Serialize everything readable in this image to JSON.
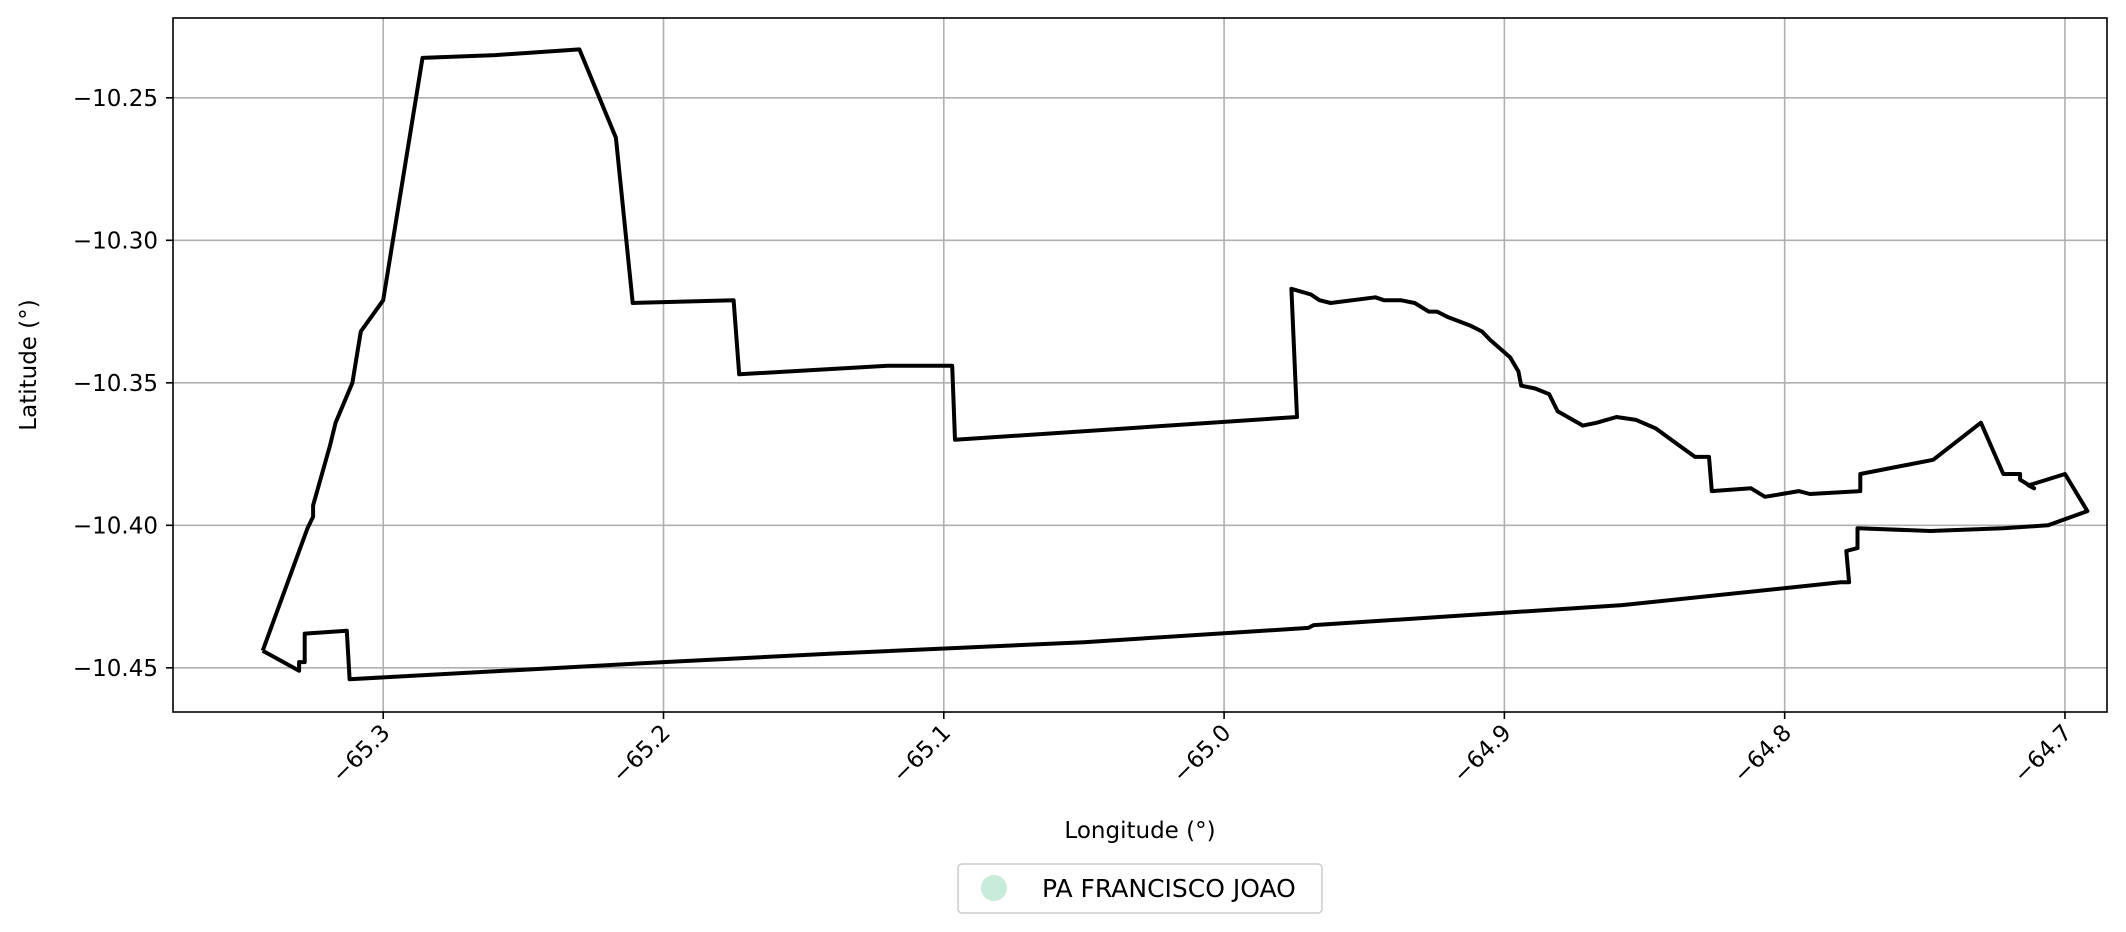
{
  "chart_data": {
    "type": "line",
    "title": "",
    "xlabel": "Longitude (°)",
    "ylabel": "Latitude (°)",
    "xlim": [
      -65.375,
      -64.685
    ],
    "ylim": [
      -10.4655,
      -10.222
    ],
    "grid": true,
    "legend_placement": "bottom-center",
    "xticks": [
      -65.3,
      -65.2,
      -65.1,
      -65.0,
      -64.9,
      -64.8,
      -64.7
    ],
    "xtick_labels": [
      "−65.3",
      "−65.2",
      "−65.1",
      "−65.0",
      "−64.9",
      "−64.8",
      "−64.7"
    ],
    "yticks": [
      -10.25,
      -10.3,
      -10.35,
      -10.4,
      -10.45
    ],
    "ytick_labels": [
      "−10.25",
      "−10.30",
      "−10.35",
      "−10.40",
      "−10.45"
    ],
    "legend": [
      {
        "name": "PA FRANCISCO JOAO",
        "color": "#c8ebdc"
      }
    ],
    "series": [
      {
        "name": "PA FRANCISCO JOAO",
        "color": "#000000",
        "points": [
          [
            -65.343,
            -10.444
          ],
          [
            -65.327,
            -10.401
          ],
          [
            -65.325,
            -10.397
          ],
          [
            -65.325,
            -10.393
          ],
          [
            -65.319,
            -10.372
          ],
          [
            -65.317,
            -10.364
          ],
          [
            -65.311,
            -10.35
          ],
          [
            -65.308,
            -10.332
          ],
          [
            -65.3,
            -10.321
          ],
          [
            -65.286,
            -10.236
          ],
          [
            -65.26,
            -10.235
          ],
          [
            -65.23,
            -10.233
          ],
          [
            -65.217,
            -10.264
          ],
          [
            -65.211,
            -10.322
          ],
          [
            -65.175,
            -10.321
          ],
          [
            -65.173,
            -10.347
          ],
          [
            -65.12,
            -10.344
          ],
          [
            -65.097,
            -10.344
          ],
          [
            -65.096,
            -10.37
          ],
          [
            -64.974,
            -10.362
          ],
          [
            -64.976,
            -10.317
          ],
          [
            -64.969,
            -10.319
          ],
          [
            -64.966,
            -10.321
          ],
          [
            -64.962,
            -10.322
          ],
          [
            -64.946,
            -10.32
          ],
          [
            -64.943,
            -10.321
          ],
          [
            -64.937,
            -10.321
          ],
          [
            -64.932,
            -10.322
          ],
          [
            -64.927,
            -10.325
          ],
          [
            -64.924,
            -10.325
          ],
          [
            -64.92,
            -10.327
          ],
          [
            -64.912,
            -10.33
          ],
          [
            -64.908,
            -10.332
          ],
          [
            -64.905,
            -10.335
          ],
          [
            -64.898,
            -10.341
          ],
          [
            -64.895,
            -10.346
          ],
          [
            -64.894,
            -10.351
          ],
          [
            -64.889,
            -10.352
          ],
          [
            -64.884,
            -10.354
          ],
          [
            -64.881,
            -10.36
          ],
          [
            -64.872,
            -10.365
          ],
          [
            -64.867,
            -10.364
          ],
          [
            -64.86,
            -10.362
          ],
          [
            -64.853,
            -10.363
          ],
          [
            -64.846,
            -10.366
          ],
          [
            -64.839,
            -10.371
          ],
          [
            -64.832,
            -10.376
          ],
          [
            -64.827,
            -10.376
          ],
          [
            -64.826,
            -10.388
          ],
          [
            -64.812,
            -10.387
          ],
          [
            -64.807,
            -10.39
          ],
          [
            -64.801,
            -10.389
          ],
          [
            -64.795,
            -10.388
          ],
          [
            -64.791,
            -10.389
          ],
          [
            -64.773,
            -10.388
          ],
          [
            -64.773,
            -10.382
          ],
          [
            -64.747,
            -10.377
          ],
          [
            -64.73,
            -10.364
          ],
          [
            -64.722,
            -10.382
          ],
          [
            -64.716,
            -10.382
          ],
          [
            -64.716,
            -10.384
          ],
          [
            -64.711,
            -10.387
          ],
          [
            -64.713,
            -10.386
          ],
          [
            -64.7,
            -10.382
          ],
          [
            -64.692,
            -10.395
          ],
          [
            -64.706,
            -10.4
          ],
          [
            -64.722,
            -10.401
          ],
          [
            -64.748,
            -10.402
          ],
          [
            -64.774,
            -10.401
          ],
          [
            -64.774,
            -10.408
          ],
          [
            -64.778,
            -10.409
          ],
          [
            -64.777,
            -10.42
          ],
          [
            -64.78,
            -10.42
          ],
          [
            -64.858,
            -10.428
          ],
          [
            -64.968,
            -10.435
          ],
          [
            -64.97,
            -10.436
          ],
          [
            -65.05,
            -10.441
          ],
          [
            -65.14,
            -10.445
          ],
          [
            -65.2,
            -10.448
          ],
          [
            -65.312,
            -10.454
          ],
          [
            -65.313,
            -10.437
          ],
          [
            -65.328,
            -10.438
          ],
          [
            -65.328,
            -10.448
          ],
          [
            -65.33,
            -10.448
          ],
          [
            -65.33,
            -10.451
          ],
          [
            -65.343,
            -10.444
          ]
        ]
      }
    ]
  }
}
